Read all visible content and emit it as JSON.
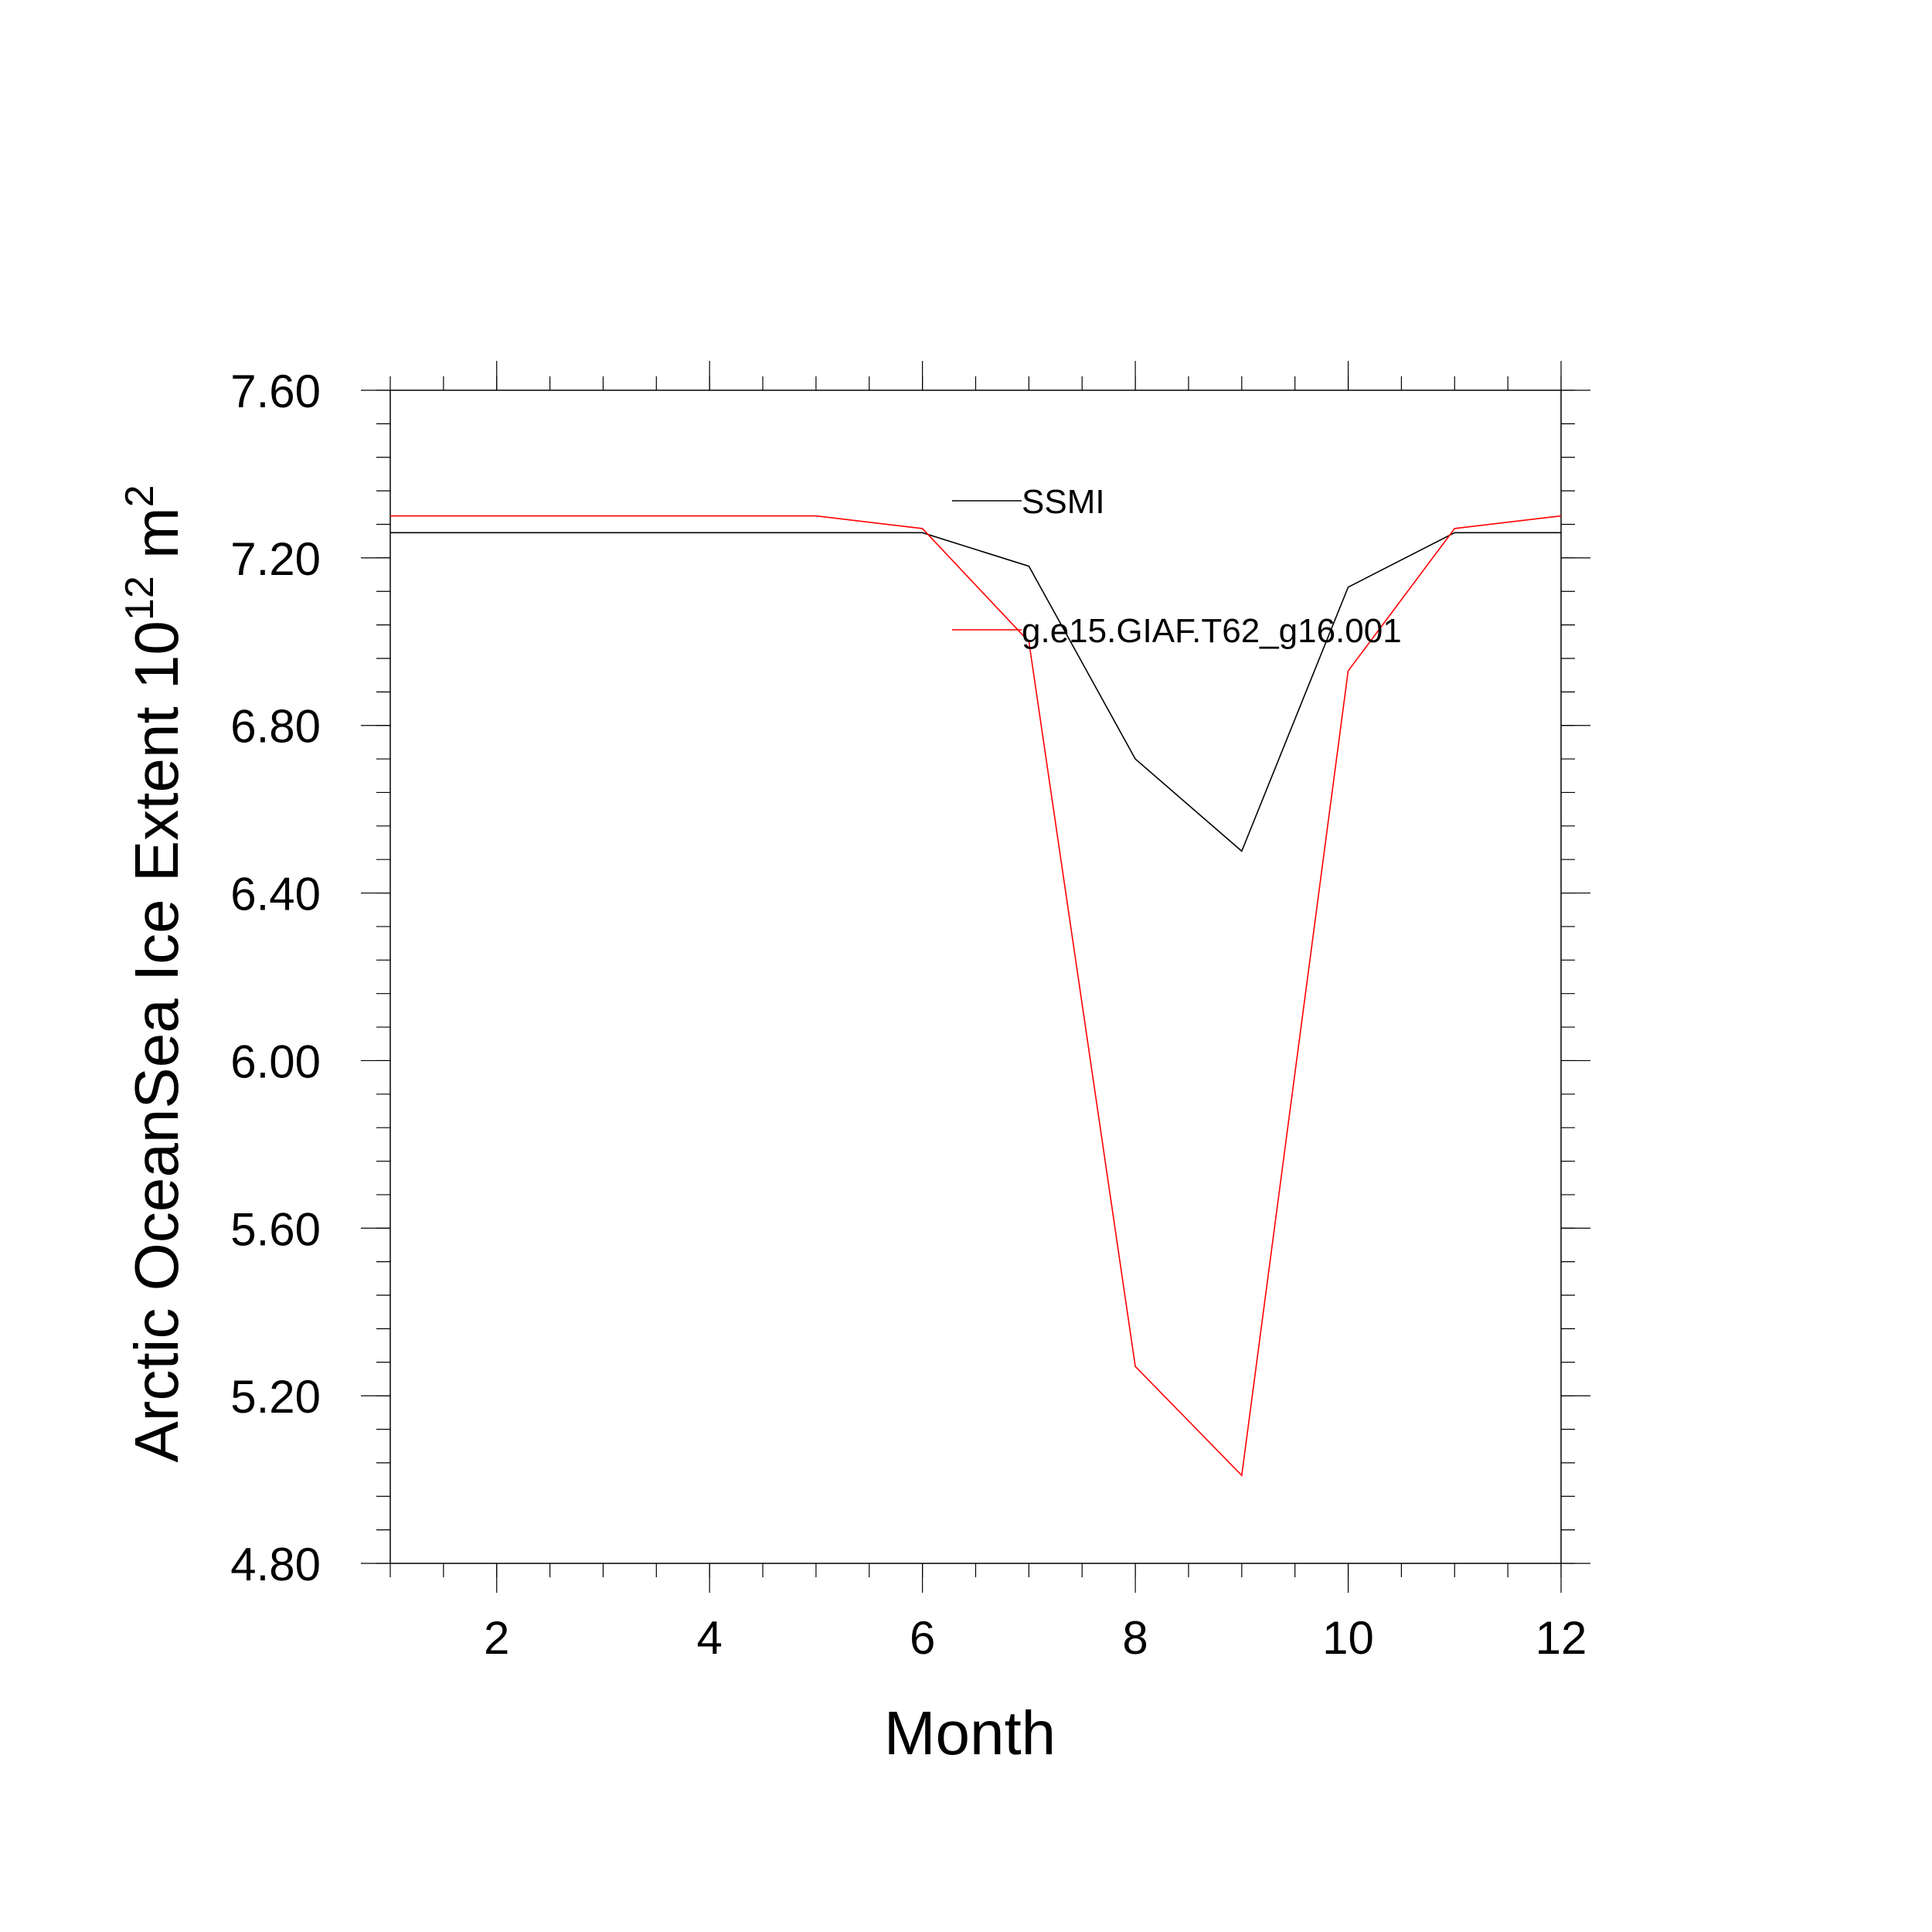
{
  "chart_data": {
    "type": "line",
    "title": "",
    "xlabel": "Month",
    "ylabel": {
      "text": "Arctic OceanSea Ice Extent 10",
      "sup1": "12",
      "unit": " m",
      "sup2": "2"
    },
    "xlim": [
      1,
      12
    ],
    "ylim": [
      4.8,
      7.6
    ],
    "xticks": [
      2,
      4,
      6,
      8,
      10,
      12
    ],
    "xtick_labels": [
      "2",
      "4",
      "6",
      "8",
      "10",
      "12"
    ],
    "yticks": [
      4.8,
      5.2,
      5.6,
      6.0,
      6.4,
      6.8,
      7.2,
      7.6
    ],
    "ytick_labels": [
      "4.80",
      "5.20",
      "5.60",
      "6.00",
      "6.40",
      "6.80",
      "7.20",
      "7.60"
    ],
    "grid": false,
    "legend_position": "upper-middle, inside plot",
    "x": [
      1,
      2,
      3,
      4,
      5,
      6,
      7,
      8,
      9,
      10,
      11,
      12
    ],
    "series": [
      {
        "name": "SSMI",
        "color": "#000000",
        "values": [
          7.26,
          7.26,
          7.26,
          7.26,
          7.26,
          7.26,
          7.18,
          6.72,
          6.5,
          7.13,
          7.26,
          7.26
        ]
      },
      {
        "name": "g.e15.GIAF.T62_g16.001",
        "color": "#ff0000",
        "values": [
          7.3,
          7.3,
          7.3,
          7.3,
          7.3,
          7.27,
          7.0,
          5.27,
          5.01,
          6.93,
          7.27,
          7.3
        ]
      }
    ]
  }
}
